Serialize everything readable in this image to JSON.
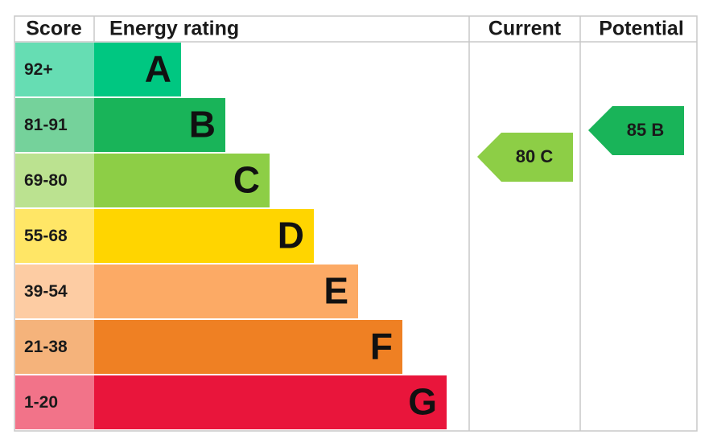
{
  "headers": {
    "score": "Score",
    "rating": "Energy rating",
    "current": "Current",
    "potential": "Potential"
  },
  "bands": [
    {
      "score": "92+",
      "letter": "A",
      "color": "#00c781"
    },
    {
      "score": "81-91",
      "letter": "B",
      "color": "#19b459"
    },
    {
      "score": "69-80",
      "letter": "C",
      "color": "#8dce46"
    },
    {
      "score": "55-68",
      "letter": "D",
      "color": "#ffd500"
    },
    {
      "score": "39-54",
      "letter": "E",
      "color": "#fcaa65"
    },
    {
      "score": "21-38",
      "letter": "F",
      "color": "#ef8023"
    },
    {
      "score": "1-20",
      "letter": "G",
      "color": "#e9153b"
    }
  ],
  "current": {
    "label": "80 C",
    "color": "#8dce46"
  },
  "potential": {
    "label": "85 B",
    "color": "#19b459"
  }
}
